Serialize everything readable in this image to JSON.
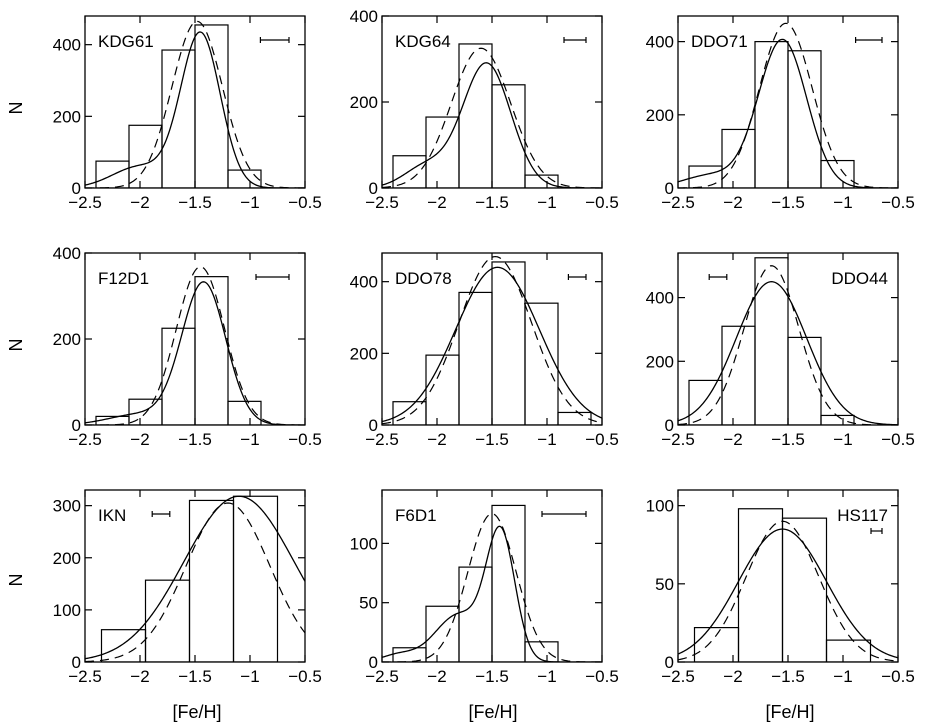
{
  "figure": {
    "xlabel": "[Fe/H]",
    "ylabel": "N"
  },
  "chart_data": [
    {
      "type": "histogram",
      "title": "KDG61",
      "label_pos": "top-left",
      "errbar_pos": "top-right",
      "err_halfwidth": 0.13,
      "xlim": [
        -2.5,
        -0.5
      ],
      "ylim": [
        0,
        480
      ],
      "xticks": [
        -2.5,
        -2,
        -1.5,
        -1,
        -0.5
      ],
      "xtick_labels": [
        "−2.5",
        "−2",
        "−1.5",
        "−1",
        "−0.5"
      ],
      "yticks": [
        0,
        200,
        400
      ],
      "ytick_labels": [
        "0",
        "200",
        "400"
      ],
      "bin_edges": [
        -2.4,
        -2.1,
        -1.8,
        -1.5,
        -1.2,
        -0.9
      ],
      "counts": [
        75,
        175,
        385,
        455,
        50
      ],
      "solid": {
        "comps": [
          [
            -1.45,
            0.18,
            430
          ],
          [
            -2.0,
            0.25,
            60
          ]
        ]
      },
      "dashed": {
        "comps": [
          [
            -1.48,
            0.23,
            465
          ]
        ]
      }
    },
    {
      "type": "histogram",
      "title": "KDG64",
      "label_pos": "top-left",
      "errbar_pos": "top-right",
      "err_halfwidth": 0.1,
      "xlim": [
        -2.5,
        -0.5
      ],
      "ylim": [
        0,
        400
      ],
      "xticks": [
        -2.5,
        -2,
        -1.5,
        -1,
        -0.5
      ],
      "xtick_labels": [
        "−2.5",
        "−2",
        "−1.5",
        "−1",
        "−0.5"
      ],
      "yticks": [
        0,
        200,
        400
      ],
      "ytick_labels": [
        "0",
        "200",
        "400"
      ],
      "bin_edges": [
        -2.4,
        -2.1,
        -1.8,
        -1.5,
        -1.2,
        -0.9
      ],
      "counts": [
        75,
        165,
        335,
        240,
        30
      ],
      "solid": {
        "comps": [
          [
            -1.55,
            0.22,
            290
          ],
          [
            -2.1,
            0.2,
            50
          ]
        ]
      },
      "dashed": {
        "comps": [
          [
            -1.6,
            0.27,
            325
          ]
        ]
      }
    },
    {
      "type": "histogram",
      "title": "DDO71",
      "label_pos": "top-left",
      "errbar_pos": "top-right",
      "err_halfwidth": 0.12,
      "xlim": [
        -2.5,
        -0.5
      ],
      "ylim": [
        0,
        470
      ],
      "xticks": [
        -2.5,
        -2,
        -1.5,
        -1,
        -0.5
      ],
      "xtick_labels": [
        "−2.5",
        "−2",
        "−1.5",
        "−1",
        "−0.5"
      ],
      "yticks": [
        0,
        200,
        400
      ],
      "ytick_labels": [
        "0",
        "200",
        "400"
      ],
      "bin_edges": [
        -2.4,
        -2.1,
        -1.8,
        -1.5,
        -1.2,
        -0.9
      ],
      "counts": [
        60,
        160,
        400,
        375,
        75
      ],
      "solid": {
        "comps": [
          [
            -1.55,
            0.22,
            405
          ],
          [
            -2.2,
            0.25,
            35
          ]
        ]
      },
      "dashed": {
        "comps": [
          [
            -1.52,
            0.24,
            450
          ]
        ]
      }
    },
    {
      "type": "histogram",
      "title": "F12D1",
      "label_pos": "top-left",
      "errbar_pos": "top-right",
      "err_halfwidth": 0.15,
      "xlim": [
        -2.5,
        -0.5
      ],
      "ylim": [
        0,
        400
      ],
      "xticks": [
        -2.5,
        -2,
        -1.5,
        -1,
        -0.5
      ],
      "xtick_labels": [
        "−2.5",
        "−2",
        "−1.5",
        "−1",
        "−0.5"
      ],
      "yticks": [
        0,
        200,
        400
      ],
      "ytick_labels": [
        "0",
        "200",
        "400"
      ],
      "bin_edges": [
        -2.4,
        -2.1,
        -1.8,
        -1.5,
        -1.2,
        -0.9
      ],
      "counts": [
        20,
        60,
        225,
        345,
        55
      ],
      "solid": {
        "comps": [
          [
            -1.42,
            0.2,
            330
          ],
          [
            -2.0,
            0.28,
            25
          ]
        ]
      },
      "dashed": {
        "comps": [
          [
            -1.45,
            0.22,
            368
          ]
        ]
      }
    },
    {
      "type": "histogram",
      "title": "DDO78",
      "label_pos": "top-left",
      "errbar_pos": "top-right",
      "err_halfwidth": 0.08,
      "xlim": [
        -2.5,
        -0.5
      ],
      "ylim": [
        0,
        480
      ],
      "xticks": [
        -2.5,
        -2,
        -1.5,
        -1,
        -0.5
      ],
      "xtick_labels": [
        "−2.5",
        "−2",
        "−1.5",
        "−1",
        "−0.5"
      ],
      "yticks": [
        0,
        200,
        400
      ],
      "ytick_labels": [
        "0",
        "200",
        "400"
      ],
      "bin_edges": [
        -2.4,
        -2.1,
        -1.8,
        -1.5,
        -1.2,
        -0.9,
        -0.6
      ],
      "counts": [
        65,
        195,
        370,
        455,
        340,
        35
      ],
      "solid": {
        "comps": [
          [
            -1.45,
            0.38,
            440
          ]
        ]
      },
      "dashed": {
        "comps": [
          [
            -1.47,
            0.33,
            470
          ]
        ]
      }
    },
    {
      "type": "histogram",
      "title": "DDO44",
      "label_pos": "top-right",
      "errbar_pos": "top-left",
      "err_halfwidth": 0.08,
      "xlim": [
        -2.5,
        -0.5
      ],
      "ylim": [
        0,
        540
      ],
      "xticks": [
        -2.5,
        -2,
        -1.5,
        -1,
        -0.5
      ],
      "xtick_labels": [
        "−2.5",
        "−2",
        "−1.5",
        "−1",
        "−0.5"
      ],
      "yticks": [
        0,
        200,
        400
      ],
      "ytick_labels": [
        "0",
        "200",
        "400"
      ],
      "bin_edges": [
        -2.4,
        -2.1,
        -1.8,
        -1.5,
        -1.2,
        -0.9
      ],
      "counts": [
        140,
        310,
        525,
        275,
        30
      ],
      "solid": {
        "comps": [
          [
            -1.65,
            0.32,
            450
          ]
        ]
      },
      "dashed": {
        "comps": [
          [
            -1.65,
            0.25,
            500
          ]
        ]
      }
    },
    {
      "type": "histogram",
      "title": "IKN",
      "label_pos": "top-left",
      "errbar_pos": "top-left-center",
      "err_halfwidth": 0.08,
      "xlim": [
        -2.5,
        -0.5
      ],
      "ylim": [
        0,
        330
      ],
      "xticks": [
        -2.5,
        -2,
        -1.5,
        -1,
        -0.5
      ],
      "xtick_labels": [
        "−2.5",
        "−2",
        "−1.5",
        "−1",
        "−0.5"
      ],
      "yticks": [
        0,
        100,
        200,
        300
      ],
      "ytick_labels": [
        "0",
        "100",
        "200",
        "300"
      ],
      "bin_edges": [
        -2.35,
        -1.95,
        -1.55,
        -1.15,
        -0.75
      ],
      "counts": [
        62,
        157,
        310,
        318
      ],
      "solid": {
        "comps": [
          [
            -1.1,
            0.5,
            318
          ]
        ]
      },
      "dashed": {
        "comps": [
          [
            -1.2,
            0.38,
            305
          ]
        ]
      }
    },
    {
      "type": "histogram",
      "title": "F6D1",
      "label_pos": "top-left",
      "errbar_pos": "top-right",
      "err_halfwidth": 0.2,
      "xlim": [
        -2.5,
        -0.5
      ],
      "ylim": [
        0,
        145
      ],
      "xticks": [
        -2.5,
        -2,
        -1.5,
        -1,
        -0.5
      ],
      "xtick_labels": [
        "−2.5",
        "−2",
        "−1.5",
        "−1",
        "−0.5"
      ],
      "yticks": [
        0,
        50,
        100
      ],
      "ytick_labels": [
        "0",
        "50",
        "100"
      ],
      "bin_edges": [
        -2.4,
        -2.1,
        -1.8,
        -1.5,
        -1.2,
        -0.9
      ],
      "counts": [
        12,
        47,
        80,
        132,
        17
      ],
      "solid": {
        "comps": [
          [
            -1.42,
            0.13,
            105
          ],
          [
            -1.8,
            0.22,
            40
          ],
          [
            -2.35,
            0.15,
            6
          ]
        ]
      },
      "dashed": {
        "comps": [
          [
            -1.5,
            0.22,
            125
          ]
        ]
      }
    },
    {
      "type": "histogram",
      "title": "HS117",
      "label_pos": "top-right",
      "errbar_pos": "top-right",
      "err_halfwidth": 0.05,
      "xlim": [
        -2.5,
        -0.5
      ],
      "ylim": [
        0,
        110
      ],
      "xticks": [
        -2.5,
        -2,
        -1.5,
        -1,
        -0.5
      ],
      "xtick_labels": [
        "−2.5",
        "−2",
        "−1.5",
        "−1",
        "−0.5"
      ],
      "yticks": [
        0,
        50,
        100
      ],
      "ytick_labels": [
        "0",
        "50",
        "100"
      ],
      "bin_edges": [
        -2.35,
        -1.95,
        -1.55,
        -1.15,
        -0.75
      ],
      "counts": [
        22,
        98,
        92,
        14
      ],
      "solid": {
        "comps": [
          [
            -1.55,
            0.4,
            85
          ]
        ]
      },
      "dashed": {
        "comps": [
          [
            -1.55,
            0.33,
            90
          ]
        ]
      }
    }
  ]
}
